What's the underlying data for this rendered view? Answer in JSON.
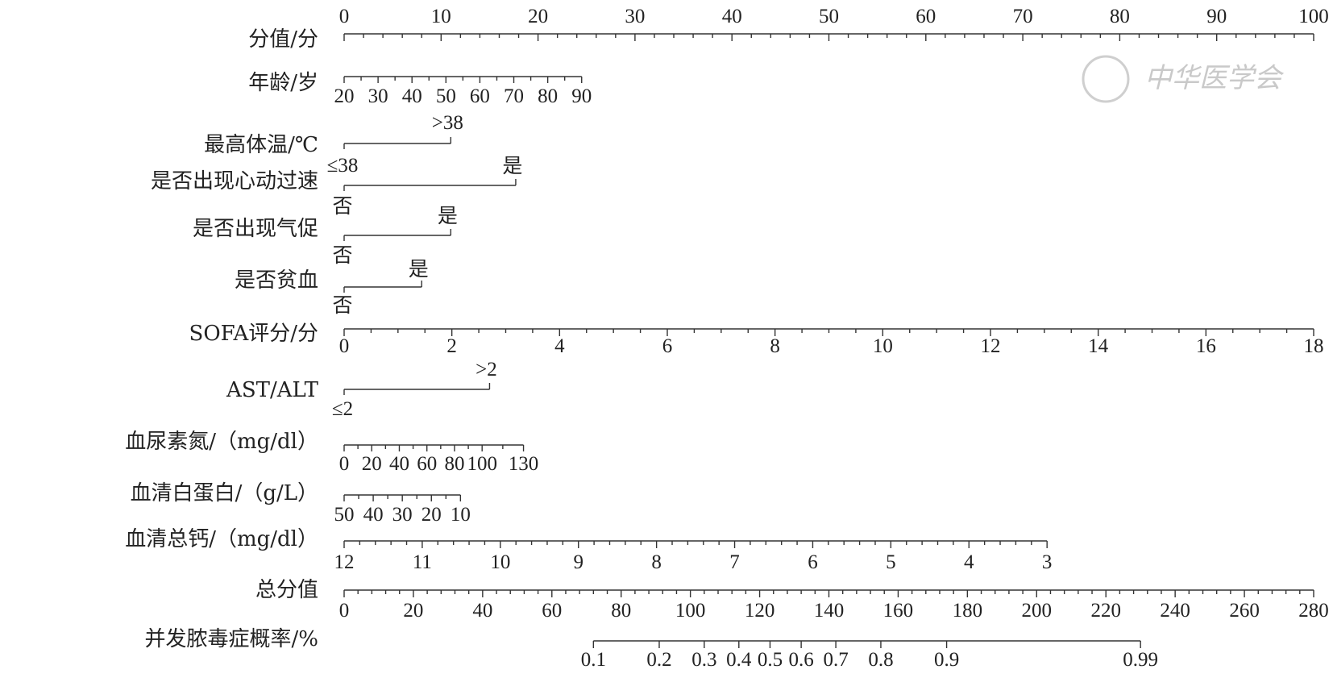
{
  "chart_data": {
    "type": "nomogram",
    "watermark": "中华医学会",
    "points_axis": {
      "label": "分值/分",
      "ticks": [
        "0",
        "10",
        "20",
        "30",
        "40",
        "50",
        "60",
        "70",
        "80",
        "90",
        "100"
      ],
      "min": 0,
      "max": 100
    },
    "variables": [
      {
        "label": "年龄/岁",
        "kind": "continuous",
        "tick_labels": [
          "20",
          "30",
          "40",
          "50",
          "60",
          "70",
          "80",
          "90"
        ],
        "values": [
          20,
          30,
          40,
          50,
          60,
          70,
          80,
          90
        ],
        "points_at_min": 0,
        "points_at_max": 24.5
      },
      {
        "label": "最高体温/℃",
        "kind": "binary",
        "low_label": "≤38",
        "high_label": ">38",
        "points": 11
      },
      {
        "label": "是否出现心动过速",
        "kind": "binary",
        "low_label": "否",
        "high_label": "是",
        "points": 17.7
      },
      {
        "label": "是否出现气促",
        "kind": "binary",
        "low_label": "否",
        "high_label": "是",
        "points": 11
      },
      {
        "label": "是否贫血",
        "kind": "binary",
        "low_label": "否",
        "high_label": "是",
        "points": 8
      },
      {
        "label": "SOFA评分/分",
        "kind": "continuous",
        "tick_labels": [
          "0",
          "2",
          "4",
          "6",
          "8",
          "10",
          "12",
          "14",
          "16",
          "18"
        ],
        "values": [
          0,
          2,
          4,
          6,
          8,
          10,
          12,
          14,
          16,
          18
        ],
        "points_at_min": 0,
        "points_at_max": 100
      },
      {
        "label": "AST/ALT",
        "kind": "binary",
        "low_label": "≤2",
        "high_label": ">2",
        "points": 15
      },
      {
        "label": "血尿素氮/（mg/dl）",
        "kind": "continuous",
        "tick_labels": [
          "0",
          "20",
          "40",
          "60",
          "80",
          "100",
          "130"
        ],
        "values": [
          0,
          20,
          40,
          60,
          80,
          100,
          130
        ],
        "points_at_min": 0,
        "points_at_max": 18.5
      },
      {
        "label": "血清白蛋白/（g/L）",
        "kind": "continuous",
        "tick_labels": [
          "50",
          "40",
          "30",
          "20",
          "10"
        ],
        "values": [
          50,
          40,
          30,
          20,
          10
        ],
        "points_at_min": 0,
        "points_at_max": 12
      },
      {
        "label": "血清总钙/（mg/dl）",
        "kind": "continuous",
        "tick_labels": [
          "12",
          "11",
          "10",
          "9",
          "8",
          "7",
          "6",
          "5",
          "4",
          "3"
        ],
        "values": [
          12,
          11,
          10,
          9,
          8,
          7,
          6,
          5,
          4,
          3
        ],
        "points_at_min": 0,
        "points_at_max": 72.5
      }
    ],
    "total_points_axis": {
      "label": "总分值",
      "ticks": [
        "0",
        "20",
        "40",
        "60",
        "80",
        "100",
        "120",
        "140",
        "160",
        "180",
        "200",
        "220",
        "240",
        "260",
        "280"
      ],
      "min": 0,
      "max": 280
    },
    "probability_axis": {
      "label": "并发脓毒症概率/%",
      "tick_labels": [
        "0.1",
        "0.2",
        "0.3",
        "0.4",
        "0.5",
        "0.6",
        "0.7",
        "0.8",
        "0.9",
        "0.99"
      ],
      "total_points": [
        72,
        91,
        104,
        114,
        123,
        132,
        142,
        155,
        174,
        230
      ]
    }
  }
}
